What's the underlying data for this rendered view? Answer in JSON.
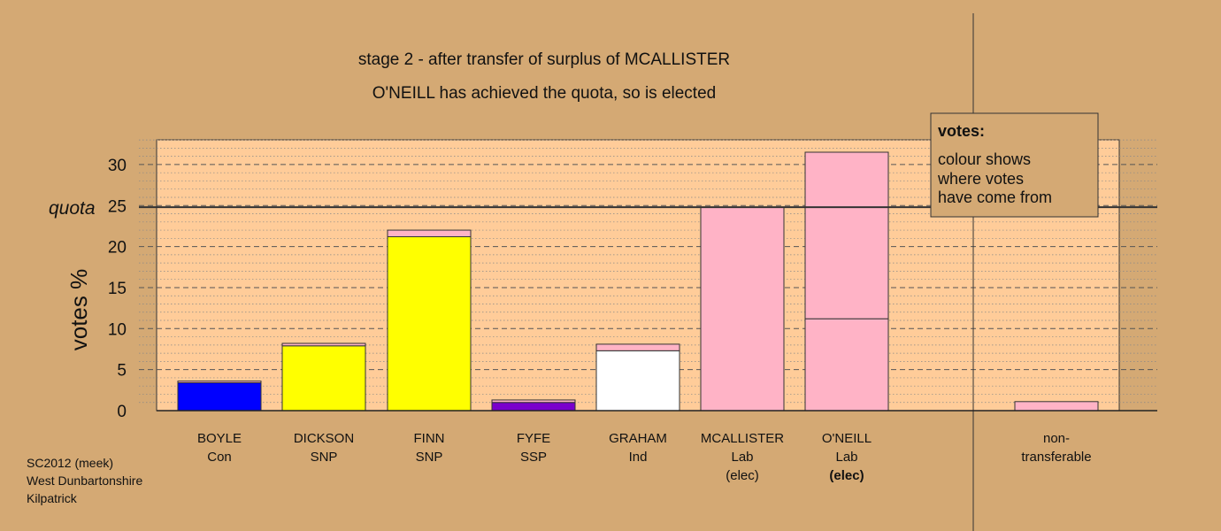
{
  "chart_data": {
    "type": "bar",
    "stacked": true,
    "title": "stage 2 - after transfer of surplus of MCALLISTER",
    "subtitle": "O'NEILL has achieved the quota, so is elected",
    "ylabel": "votes %",
    "ylim": [
      0,
      33
    ],
    "yticks": [
      0,
      5,
      10,
      15,
      20,
      25,
      30
    ],
    "quota": {
      "label": "quota",
      "value": 24.8
    },
    "legend": {
      "title": "votes:",
      "lines": [
        "colour shows",
        "where votes",
        "have come from"
      ],
      "position": "top-right"
    },
    "grid": true,
    "candidates": [
      {
        "name": "BOYLE",
        "party": "Con",
        "note": "",
        "segments": [
          {
            "value": 3.4,
            "color": "#0000ff"
          },
          {
            "value": 0.2,
            "color": "#ffb3c6"
          }
        ]
      },
      {
        "name": "DICKSON",
        "party": "SNP",
        "note": "",
        "segments": [
          {
            "value": 7.9,
            "color": "#ffff00"
          },
          {
            "value": 0.3,
            "color": "#ffb3c6"
          }
        ]
      },
      {
        "name": "FINN",
        "party": "SNP",
        "note": "",
        "segments": [
          {
            "value": 21.2,
            "color": "#ffff00"
          },
          {
            "value": 0.8,
            "color": "#ffb3c6"
          }
        ]
      },
      {
        "name": "FYFE",
        "party": "SSP",
        "note": "",
        "segments": [
          {
            "value": 1.0,
            "color": "#7a00cc"
          },
          {
            "value": 0.3,
            "color": "#ffb3c6"
          }
        ]
      },
      {
        "name": "GRAHAM",
        "party": "Ind",
        "note": "",
        "segments": [
          {
            "value": 7.3,
            "color": "#ffffff"
          },
          {
            "value": 0.8,
            "color": "#ffb3c6"
          }
        ]
      },
      {
        "name": "MCALLISTER",
        "party": "Lab",
        "note": "(elec)",
        "note_bold": false,
        "segments": [
          {
            "value": 24.8,
            "color": "#ffb3c6"
          }
        ]
      },
      {
        "name": "O'NEILL",
        "party": "Lab",
        "note": "(elec)",
        "note_bold": true,
        "segments": [
          {
            "value": 11.2,
            "color": "#ffb3c6"
          },
          {
            "value": 20.3,
            "color": "#ffb3c6"
          }
        ]
      }
    ],
    "nontransferable": {
      "label_line1": "non-",
      "label_line2": "transferable",
      "value": 1.1,
      "color": "#ffb3c6"
    }
  },
  "footer": {
    "line1": "SC2012 (meek)",
    "line2": "West Dunbartonshire",
    "line3": "Kilpatrick"
  }
}
